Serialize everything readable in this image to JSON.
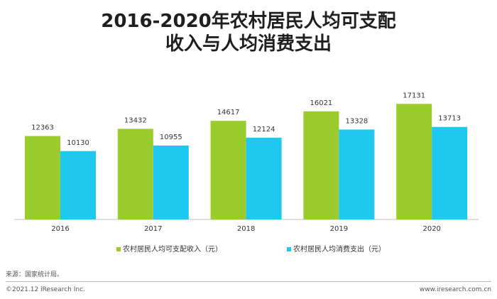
{
  "chart_data": {
    "type": "bar",
    "title_lines": [
      "2016-2020年农村居民人均可支配",
      "收入与人均消费支出"
    ],
    "categories": [
      "2016",
      "2017",
      "2018",
      "2019",
      "2020"
    ],
    "series": [
      {
        "name": "农村居民人均可支配收入（元）",
        "values": [
          12363,
          13432,
          14617,
          16021,
          17131
        ],
        "color": "#9bcc2e"
      },
      {
        "name": "农村居民人均消费支出（元）",
        "values": [
          10130,
          10955,
          12124,
          13328,
          13713
        ],
        "color": "#1ec8ef"
      }
    ],
    "ylim": [
      0,
      20000
    ],
    "grid": false,
    "legend_position": "bottom"
  },
  "footer": {
    "source": "来源：国家统计局。",
    "copyright": "©2021.12 iResearch Inc.",
    "website": "www.iresearch.com.cn"
  }
}
